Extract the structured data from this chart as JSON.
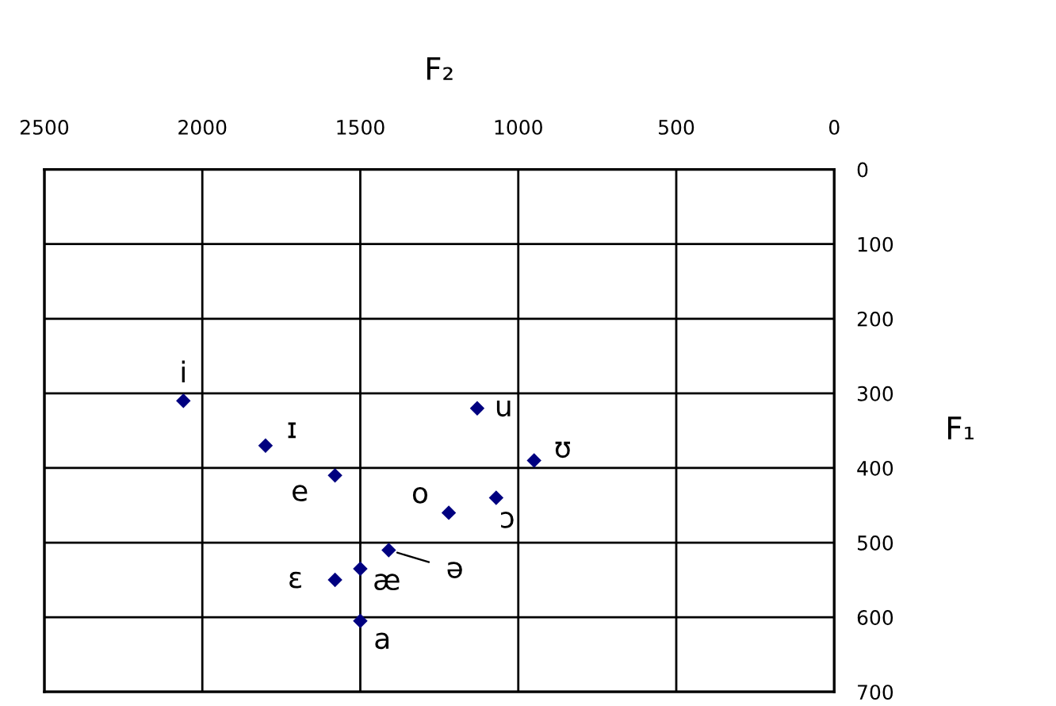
{
  "chart_data": {
    "type": "scatter",
    "xlabel": "F₂",
    "ylabel": "F₁",
    "x": [
      2060,
      1800,
      1580,
      1130,
      950,
      1220,
      1070,
      1410,
      1500,
      1580,
      1500
    ],
    "series": [
      {
        "color": "#000080",
        "values": [
          310,
          370,
          410,
          320,
          390,
          460,
          440,
          510,
          535,
          550,
          605
        ]
      }
    ],
    "annotations": [
      {
        "text": "i",
        "x": 2060,
        "y": 310
      },
      {
        "text": "ɪ",
        "x": 1800,
        "y": 370
      },
      {
        "text": "e",
        "x": 1580,
        "y": 410
      },
      {
        "text": "u",
        "x": 1130,
        "y": 320
      },
      {
        "text": "ʊ",
        "x": 950,
        "y": 390
      },
      {
        "text": "o",
        "x": 1220,
        "y": 460
      },
      {
        "text": "ɔ",
        "x": 1070,
        "y": 440
      },
      {
        "text": "ə",
        "x": 1410,
        "y": 510
      },
      {
        "text": "æ",
        "x": 1500,
        "y": 535
      },
      {
        "text": "ɛ",
        "x": 1580,
        "y": 550
      },
      {
        "text": "a",
        "x": 1500,
        "y": 605
      }
    ],
    "xlim": [
      2500,
      0
    ],
    "xticks": [
      2500,
      2000,
      1500,
      1000,
      500,
      0
    ],
    "ylim": [
      700,
      0
    ],
    "yticks": [
      0,
      100,
      200,
      300,
      400,
      500,
      600,
      700
    ],
    "grid": true,
    "marker": "diamond"
  }
}
